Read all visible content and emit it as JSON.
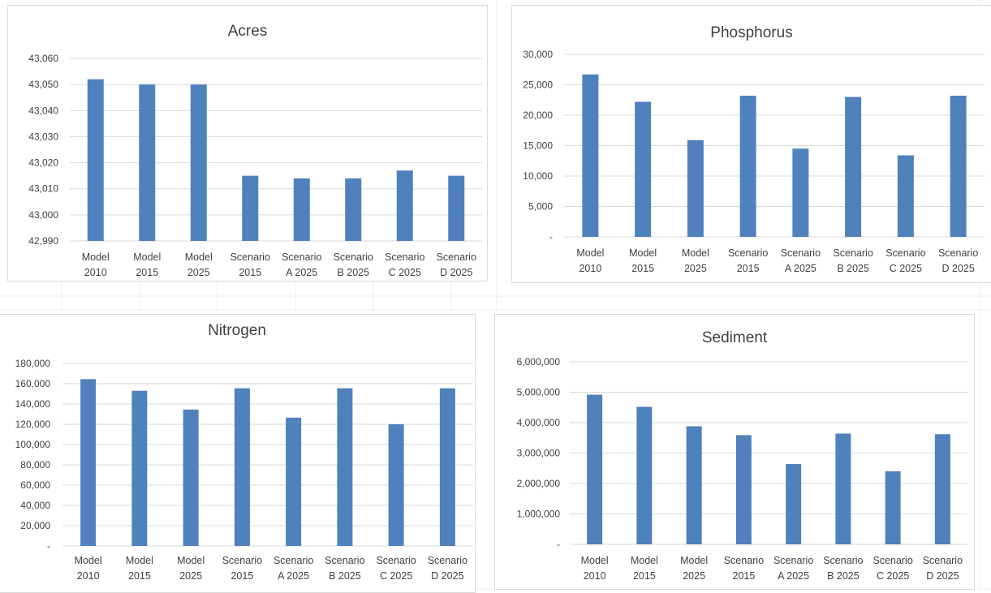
{
  "chart_data": [
    {
      "type": "bar",
      "title": "Acres",
      "categories": [
        [
          "Model",
          "2010"
        ],
        [
          "Model",
          "2015"
        ],
        [
          "Model",
          "2025"
        ],
        [
          "Scenario",
          "2015"
        ],
        [
          "Scenario",
          "A 2025"
        ],
        [
          "Scenario",
          "B 2025"
        ],
        [
          "Scenario",
          "C 2025"
        ],
        [
          "Scenario",
          "D 2025"
        ]
      ],
      "values": [
        43052,
        43050,
        43050,
        43015,
        43014,
        43014,
        43017,
        43015
      ],
      "ylim": [
        42990,
        43060
      ],
      "yticks": [
        42990,
        43000,
        43010,
        43020,
        43030,
        43040,
        43050,
        43060
      ],
      "ytick_labels": [
        "42,990",
        "43,000",
        "43,010",
        "43,020",
        "43,030",
        "43,040",
        "43,050",
        "43,060"
      ],
      "grid": true,
      "color": "#4f81bd"
    },
    {
      "type": "bar",
      "title": "Phosphorus",
      "categories": [
        [
          "Model",
          "2010"
        ],
        [
          "Model",
          "2015"
        ],
        [
          "Model",
          "2025"
        ],
        [
          "Scenario",
          "2015"
        ],
        [
          "Scenario",
          "A 2025"
        ],
        [
          "Scenario",
          "B 2025"
        ],
        [
          "Scenario",
          "C 2025"
        ],
        [
          "Scenario",
          "D 2025"
        ]
      ],
      "values": [
        26700,
        22200,
        15900,
        23200,
        14500,
        23000,
        13400,
        23200
      ],
      "ylim": [
        0,
        30000
      ],
      "yticks": [
        0,
        5000,
        10000,
        15000,
        20000,
        25000,
        30000
      ],
      "ytick_labels": [
        "-",
        "5,000",
        "10,000",
        "15,000",
        "20,000",
        "25,000",
        "30,000"
      ],
      "grid": true,
      "color": "#4f81bd"
    },
    {
      "type": "bar",
      "title": "Nitrogen",
      "categories": [
        [
          "Model",
          "2010"
        ],
        [
          "Model",
          "2015"
        ],
        [
          "Model",
          "2025"
        ],
        [
          "Scenario",
          "2015"
        ],
        [
          "Scenario",
          "A 2025"
        ],
        [
          "Scenario",
          "B 2025"
        ],
        [
          "Scenario",
          "C 2025"
        ],
        [
          "Scenario",
          "D 2025"
        ]
      ],
      "values": [
        164500,
        153000,
        134500,
        155500,
        126500,
        155500,
        120000,
        155500
      ],
      "ylim": [
        0,
        180000
      ],
      "yticks": [
        0,
        20000,
        40000,
        60000,
        80000,
        100000,
        120000,
        140000,
        160000,
        180000
      ],
      "ytick_labels": [
        "-",
        "20,000",
        "40,000",
        "60,000",
        "80,000",
        "100,000",
        "120,000",
        "140,000",
        "160,000",
        "180,000"
      ],
      "grid": true,
      "color": "#4f81bd"
    },
    {
      "type": "bar",
      "title": "Sediment",
      "categories": [
        [
          "Model",
          "2010"
        ],
        [
          "Model",
          "2015"
        ],
        [
          "Model",
          "2025"
        ],
        [
          "Scenario",
          "2015"
        ],
        [
          "Scenario",
          "A 2025"
        ],
        [
          "Scenario",
          "B 2025"
        ],
        [
          "Scenario",
          "C 2025"
        ],
        [
          "Scenario",
          "D 2025"
        ]
      ],
      "values": [
        4920000,
        4520000,
        3880000,
        3590000,
        2640000,
        3640000,
        2400000,
        3620000
      ],
      "ylim": [
        0,
        6000000
      ],
      "yticks": [
        0,
        1000000,
        2000000,
        3000000,
        4000000,
        5000000,
        6000000
      ],
      "ytick_labels": [
        "-",
        "1,000,000",
        "2,000,000",
        "3,000,000",
        "4,000,000",
        "5,000,000",
        "6,000,000"
      ],
      "grid": true,
      "color": "#4f81bd"
    }
  ]
}
